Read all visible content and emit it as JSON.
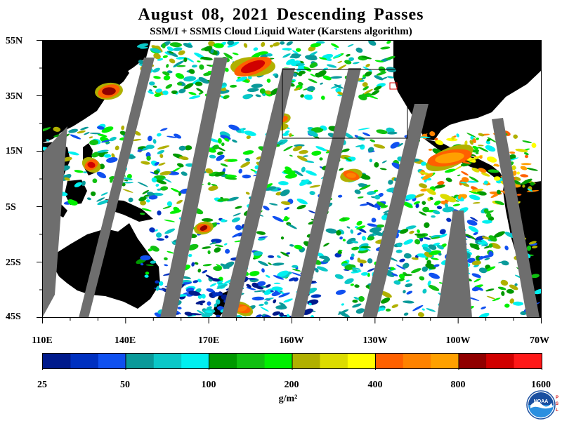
{
  "title": "August 08, 2021  Descending Passes",
  "subtitle": "SSM/I + SSMIS Cloud Liquid Water (Karstens algorithm)",
  "map": {
    "lon_range": [
      "110E",
      "70W"
    ],
    "lat_range": [
      "45S",
      "55N"
    ],
    "lat_labels": [
      "55N",
      "35N",
      "15N",
      "5S",
      "25S",
      "45S"
    ],
    "lon_labels": [
      "110E",
      "140E",
      "170E",
      "160W",
      "130W",
      "100W",
      "70W"
    ],
    "land_color": "#000000",
    "missing_data_color": "#6e6e6e",
    "no_cloud_color": "#ffffff",
    "marked_regions": [
      "black box over the NE Pacific",
      "small red box near the US west coast"
    ]
  },
  "colorbar": {
    "colors": [
      "#001a8c",
      "#0030c0",
      "#1050f0",
      "#0a9a9a",
      "#0ac8c8",
      "#00f0f0",
      "#009900",
      "#10c010",
      "#00f000",
      "#b0b000",
      "#dcdc00",
      "#ffff00",
      "#ff6000",
      "#ff8200",
      "#ffa000",
      "#900000",
      "#d00000",
      "#ff1818"
    ],
    "tick_labels": [
      "25",
      "50",
      "100",
      "200",
      "400",
      "800",
      "1600"
    ],
    "units": "g/m²"
  },
  "logo": {
    "name": "NOAA",
    "side_text": "PSL"
  }
}
